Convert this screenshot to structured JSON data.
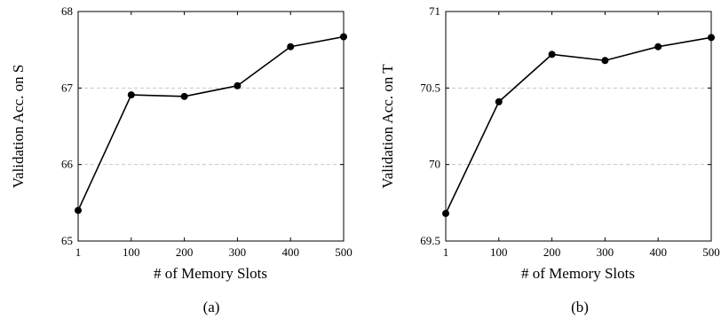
{
  "chart_data": [
    {
      "type": "line",
      "panel_label": "(a)",
      "xlabel": "# of Memory Slots",
      "ylabel": "Validation Acc. on S",
      "x_categories": [
        "1",
        "100",
        "200",
        "300",
        "400",
        "500"
      ],
      "y_ticks": [
        "65",
        "66",
        "67",
        "68"
      ],
      "ylim": [
        65,
        68
      ],
      "grid": "horizontal-dashed",
      "series": [
        {
          "values": [
            65.4,
            66.91,
            66.89,
            67.03,
            67.54,
            67.67
          ]
        }
      ]
    },
    {
      "type": "line",
      "panel_label": "(b)",
      "xlabel": "# of Memory Slots",
      "ylabel": "Validation Acc. on T",
      "x_categories": [
        "1",
        "100",
        "200",
        "300",
        "400",
        "500"
      ],
      "y_ticks": [
        "69.5",
        "70",
        "70.5",
        "71"
      ],
      "ylim": [
        69.5,
        71
      ],
      "grid": "horizontal-dashed",
      "series": [
        {
          "values": [
            69.68,
            70.41,
            70.72,
            70.68,
            70.77,
            70.83
          ]
        }
      ]
    }
  ]
}
